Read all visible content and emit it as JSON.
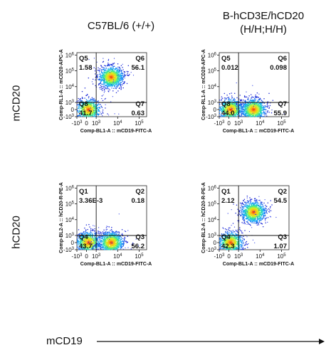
{
  "column_titles": [
    "C57BL/6 (+/+)",
    "B-hCD3E/hCD20",
    "(H/H;H/H)"
  ],
  "row_titles": [
    "mCD20",
    "hCD20"
  ],
  "x_axis_title": "mCD19",
  "chart_data": [
    {
      "type": "scatter",
      "panel": "top-left",
      "xlabel": "Comp-BL1-A :: mCD19-FITC-A",
      "ylabel": "Comp-RL1-A :: mCD20-APC-A",
      "x_ticks": [
        "-10^3",
        "0",
        "10^3",
        "10^4",
        "10^5"
      ],
      "y_ticks": [
        "10^6",
        "10^5",
        "10^4",
        "10^3",
        "0",
        "-10^3"
      ],
      "quadrants": [
        {
          "name": "Q5",
          "value": "1.58",
          "position": "top-left"
        },
        {
          "name": "Q6",
          "value": "56.1",
          "position": "top-right"
        },
        {
          "name": "Q8",
          "value": "41.7",
          "position": "bottom-left"
        },
        {
          "name": "Q7",
          "value": "0.63",
          "position": "bottom-right"
        }
      ],
      "populations": [
        {
          "x": 200,
          "y": 0,
          "percent": 41.7
        },
        {
          "x": 5000,
          "y": 40000,
          "percent": 56.1
        }
      ]
    },
    {
      "type": "scatter",
      "panel": "top-right",
      "xlabel": "Comp-BL1-A :: mCD19-FITC-A",
      "ylabel": "Comp-RL1-A :: mCD20-APC-A",
      "x_ticks": [
        "-10^3",
        "0",
        "10^3",
        "10^4",
        "10^5"
      ],
      "y_ticks": [
        "10^6",
        "10^5",
        "10^4",
        "10^3",
        "0",
        "-10^3"
      ],
      "quadrants": [
        {
          "name": "Q5",
          "value": "0.012",
          "position": "top-left"
        },
        {
          "name": "Q6",
          "value": "0.098",
          "position": "top-right"
        },
        {
          "name": "Q8",
          "value": "44.0",
          "position": "bottom-left"
        },
        {
          "name": "Q7",
          "value": "55.9",
          "position": "bottom-right"
        }
      ],
      "populations": [
        {
          "x": 200,
          "y": 0,
          "percent": 44.0
        },
        {
          "x": 5000,
          "y": 0,
          "percent": 55.9
        }
      ]
    },
    {
      "type": "scatter",
      "panel": "bottom-left",
      "xlabel": "Comp-BL1-A :: mCD19-FITC-A",
      "ylabel": "Comp-BL2-A :: hCD20-R-PE-A",
      "x_ticks": [
        "-10^3",
        "0",
        "10^3",
        "10^4",
        "10^5"
      ],
      "y_ticks": [
        "10^6",
        "10^5",
        "10^4",
        "10^3",
        "0",
        "-10^3"
      ],
      "quadrants": [
        {
          "name": "Q1",
          "value": "3.36E-3",
          "position": "top-left"
        },
        {
          "name": "Q2",
          "value": "0.18",
          "position": "top-right"
        },
        {
          "name": "Q4",
          "value": "43.7",
          "position": "bottom-left"
        },
        {
          "name": "Q3",
          "value": "56.2",
          "position": "bottom-right"
        }
      ],
      "populations": [
        {
          "x": 200,
          "y": 0,
          "percent": 43.7
        },
        {
          "x": 5000,
          "y": 0,
          "percent": 56.2
        }
      ]
    },
    {
      "type": "scatter",
      "panel": "bottom-right",
      "xlabel": "Comp-BL1-A :: mCD19-FITC-A",
      "ylabel": "Comp-BL2-A :: hCD20-R-PE-A",
      "x_ticks": [
        "-10^3",
        "0",
        "10^3",
        "10^4",
        "10^5"
      ],
      "y_ticks": [
        "10^6",
        "10^5",
        "10^4",
        "10^3",
        "0",
        "-10^3"
      ],
      "quadrants": [
        {
          "name": "Q1",
          "value": "2.12",
          "position": "top-left"
        },
        {
          "name": "Q2",
          "value": "54.5",
          "position": "top-right"
        },
        {
          "name": "Q4",
          "value": "42.3",
          "position": "bottom-left"
        },
        {
          "name": "Q3",
          "value": "1.07",
          "position": "bottom-right"
        }
      ],
      "populations": [
        {
          "x": 200,
          "y": 0,
          "percent": 42.3
        },
        {
          "x": 5000,
          "y": 30000,
          "percent": 54.5
        }
      ]
    }
  ]
}
